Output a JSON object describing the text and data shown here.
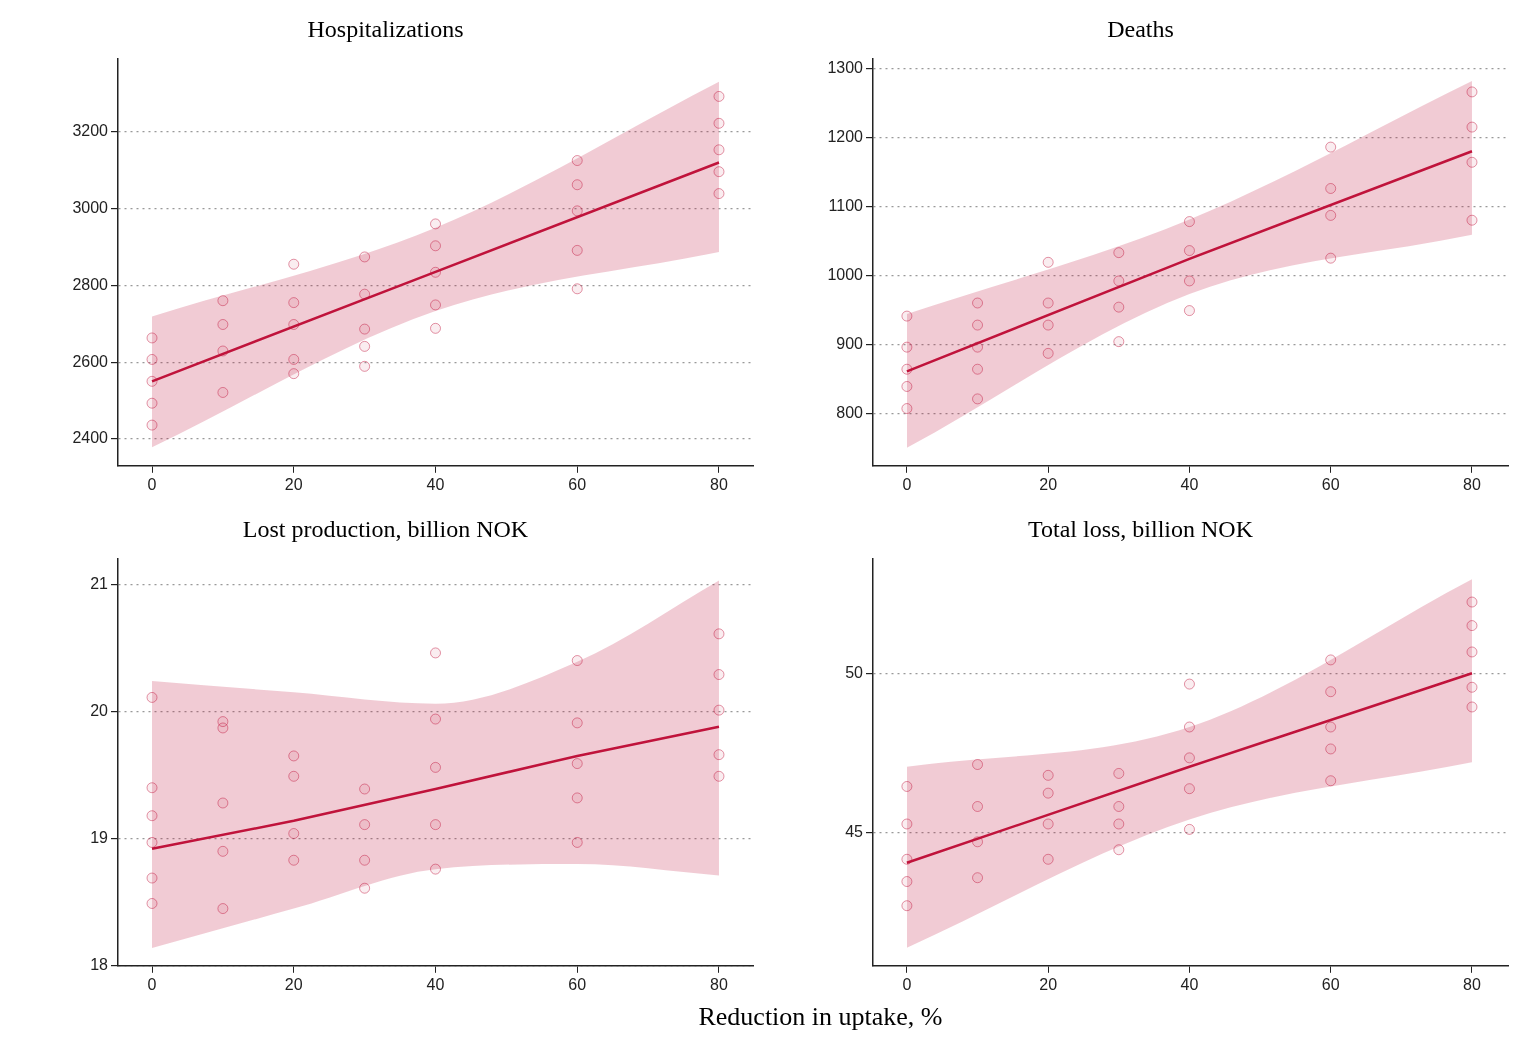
{
  "chart_data": [
    {
      "type": "line",
      "title": "Hospitalizations",
      "xlim": [
        -4.8,
        84.8
      ],
      "xticks": [
        0,
        20,
        40,
        60,
        80
      ],
      "ylim": [
        2330,
        3390
      ],
      "yticks": [
        2400,
        2600,
        2800,
        3000,
        3200
      ],
      "grid": "y",
      "series": [
        {
          "type": "line",
          "color": "#c0143c",
          "x": [
            0,
            40,
            80
          ],
          "values": [
            2550,
            2835,
            3120
          ],
          "lower": [
            2378,
            2733,
            2887
          ],
          "upper": [
            2719,
            2950,
            3330
          ]
        },
        {
          "type": "scatter",
          "color": "#c0143c",
          "marker": "circle",
          "x": [
            0,
            0,
            0,
            0,
            0,
            10,
            10,
            10,
            10,
            20,
            20,
            20,
            20,
            20,
            30,
            30,
            30,
            30,
            30,
            40,
            40,
            40,
            40,
            40,
            60,
            60,
            60,
            60,
            60,
            80,
            80,
            80,
            80,
            80
          ],
          "values": [
            2663,
            2436,
            2550,
            2607,
            2493,
            2760,
            2521,
            2629,
            2698,
            2855,
            2570,
            2698,
            2607,
            2755,
            2874,
            2589,
            2777,
            2686,
            2641,
            2960,
            2688,
            2903,
            2834,
            2749,
            3125,
            2791,
            2994,
            2891,
            3062,
            3292,
            3039,
            3222,
            3153,
            3096
          ]
        }
      ]
    },
    {
      "type": "line",
      "title": "Deaths",
      "xlim": [
        -4.8,
        85.1
      ],
      "xticks": [
        0,
        20,
        40,
        60,
        80
      ],
      "ylim": [
        724,
        1314
      ],
      "yticks": [
        800,
        900,
        1000,
        1100,
        1200,
        1300
      ],
      "grid": "y",
      "series": [
        {
          "type": "line",
          "color": "#c0143c",
          "x": [
            0,
            40,
            80
          ],
          "values": [
            861,
            1024,
            1180
          ],
          "lower": [
            750,
            973,
            1059
          ],
          "upper": [
            944,
            1081,
            1282
          ]
        },
        {
          "type": "scatter",
          "color": "#c0143c",
          "marker": "circle",
          "x": [
            0,
            0,
            0,
            0,
            0,
            10,
            10,
            10,
            10,
            10,
            20,
            20,
            20,
            20,
            30,
            30,
            30,
            30,
            40,
            40,
            40,
            40,
            60,
            60,
            60,
            60,
            80,
            80,
            80,
            80
          ],
          "values": [
            941,
            807,
            864,
            896,
            839,
            960,
            821,
            896,
            928,
            864,
            1019,
            887,
            960,
            928,
            1033,
            904,
            992,
            954,
            1078,
            949,
            1036,
            992,
            1186,
            1025,
            1126,
            1087,
            1266,
            1080,
            1215,
            1164
          ]
        }
      ]
    },
    {
      "type": "line",
      "title": "Lost production, billion NOK",
      "xlabel": "Reduction in uptake, %",
      "xlim": [
        -4.8,
        84.8
      ],
      "xticks": [
        0,
        20,
        40,
        60,
        80
      ],
      "ylim": [
        18,
        21.2
      ],
      "yticks": [
        18,
        19,
        20,
        21
      ],
      "grid": "y",
      "series": [
        {
          "type": "line",
          "color": "#c0143c",
          "x": [
            0,
            20,
            40,
            60,
            80
          ],
          "values": [
            18.92,
            19.14,
            19.39,
            19.65,
            19.88
          ],
          "lower": [
            18.14,
            18.45,
            18.76,
            18.8,
            18.71
          ],
          "upper": [
            20.24,
            20.15,
            20.06,
            20.39,
            21.03
          ]
        },
        {
          "type": "scatter",
          "color": "#c0143c",
          "marker": "circle",
          "x": [
            0,
            0,
            0,
            0,
            0,
            0,
            10,
            10,
            10,
            10,
            10,
            20,
            20,
            20,
            20,
            30,
            30,
            30,
            30,
            40,
            40,
            40,
            40,
            40,
            60,
            60,
            60,
            60,
            60,
            80,
            80,
            80,
            80,
            80
          ],
          "values": [
            20.11,
            18.49,
            19.4,
            18.97,
            18.69,
            19.18,
            19.92,
            18.45,
            19.28,
            18.9,
            19.87,
            19.65,
            18.83,
            19.49,
            19.04,
            19.39,
            18.61,
            19.11,
            18.83,
            20.46,
            18.76,
            19.94,
            19.56,
            19.11,
            20.4,
            18.97,
            19.91,
            19.59,
            19.32,
            20.61,
            19.49,
            20.29,
            20.01,
            19.66
          ]
        }
      ]
    },
    {
      "type": "line",
      "title": "Total loss, billion NOK",
      "xlim": [
        -4.8,
        85.1
      ],
      "xticks": [
        0,
        20,
        40,
        60,
        80
      ],
      "ylim": [
        40.8,
        53.6
      ],
      "yticks": [
        45,
        50
      ],
      "grid": "y",
      "series": [
        {
          "type": "line",
          "color": "#c0143c",
          "x": [
            0,
            40,
            80
          ],
          "values": [
            44.04,
            47.06,
            50.0
          ],
          "lower": [
            41.37,
            45.4,
            47.2
          ],
          "upper": [
            47.06,
            48.31,
            52.96
          ]
        },
        {
          "type": "scatter",
          "color": "#c0143c",
          "marker": "circle",
          "x": [
            0,
            0,
            0,
            0,
            0,
            10,
            10,
            10,
            10,
            20,
            20,
            20,
            20,
            30,
            30,
            30,
            30,
            40,
            40,
            40,
            40,
            40,
            60,
            60,
            60,
            60,
            60,
            80,
            80,
            80,
            80,
            80
          ],
          "values": [
            46.44,
            42.69,
            45.26,
            44.15,
            43.45,
            47.13,
            43.57,
            45.81,
            44.7,
            46.79,
            44.15,
            46.23,
            45.26,
            46.85,
            44.45,
            45.81,
            45.26,
            49.66,
            45.09,
            48.31,
            47.34,
            46.37,
            50.42,
            46.62,
            49.42,
            48.31,
            47.62,
            52.24,
            48.94,
            51.5,
            50.67,
            49.56
          ]
        }
      ]
    }
  ]
}
